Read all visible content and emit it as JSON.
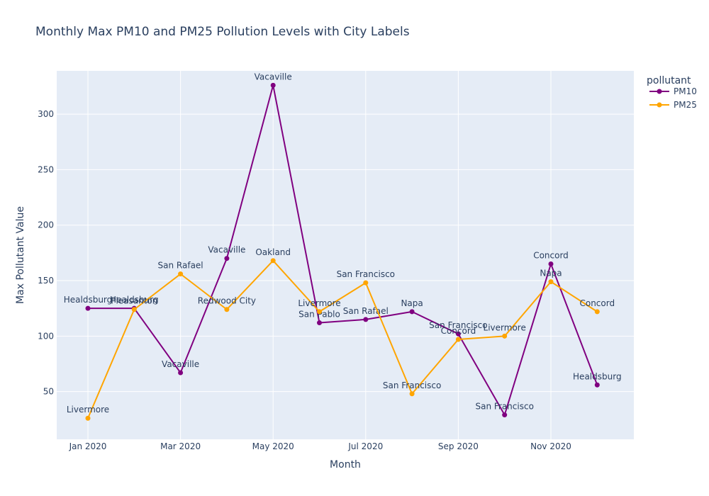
{
  "chart_data": {
    "type": "line",
    "title": "Monthly Max PM10 and PM25 Pollution Levels with City Labels",
    "xlabel": "Month",
    "ylabel": "Max Pollutant Value",
    "x": [
      "2020-01",
      "2020-02",
      "2020-03",
      "2020-04",
      "2020-05",
      "2020-06",
      "2020-07",
      "2020-08",
      "2020-09",
      "2020-10",
      "2020-11",
      "2020-12"
    ],
    "x_ticks": [
      "Jan 2020",
      "Mar 2020",
      "May 2020",
      "Jul 2020",
      "Sep 2020",
      "Nov 2020"
    ],
    "y_ticks": [
      50,
      100,
      150,
      200,
      250,
      300
    ],
    "ylim": [
      7,
      339
    ],
    "grid": true,
    "legend": {
      "title": "pollutant",
      "placement": "top-right"
    },
    "series": [
      {
        "name": "PM10",
        "color": "#800080",
        "values": [
          125,
          125,
          67,
          170,
          326,
          112,
          115,
          122,
          102,
          29,
          165,
          56
        ],
        "labels": [
          "Healdsburg",
          "Healdsburg",
          "Vacaville",
          "Vacaville",
          "Vacaville",
          "San Pablo",
          "San Rafael",
          "Napa",
          "San Francisco",
          "San Francisco",
          "Concord",
          "Healdsburg"
        ]
      },
      {
        "name": "PM25",
        "color": "#FFA500",
        "values": [
          26,
          124,
          156,
          124,
          168,
          122,
          148,
          48,
          97,
          100,
          149,
          122
        ],
        "labels": [
          "Livermore",
          "Pleasanton",
          "San Rafael",
          "Redwood City",
          "Oakland",
          "Livermore",
          "San Francisco",
          "San Francisco",
          "Concord",
          "Livermore",
          "Napa",
          "Concord"
        ]
      }
    ]
  }
}
